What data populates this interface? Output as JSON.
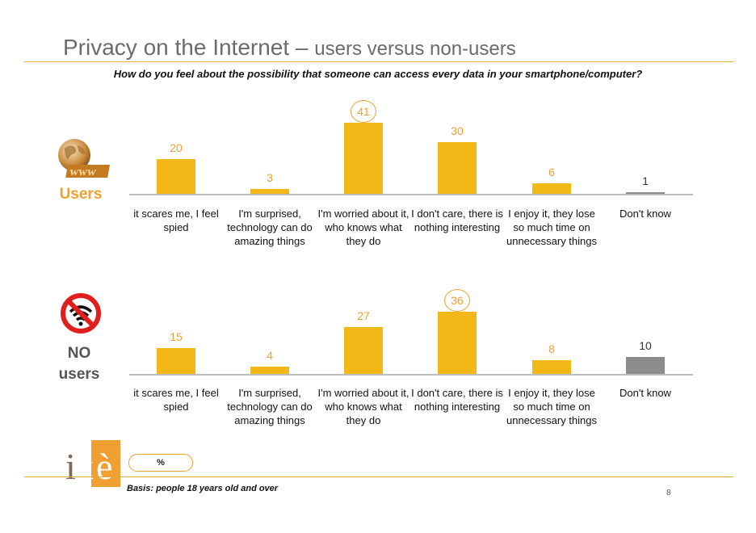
{
  "header": {
    "title_main": "Privacy on the Internet",
    "title_dash": " – ",
    "title_sub": "users versus non-users",
    "question": "How do you feel about the possibility that someone can access every data in your smartphone/computer?"
  },
  "panels": {
    "users_label": "Users",
    "nousers_label_line1": "NO",
    "nousers_label_line2": "users"
  },
  "chart_data": [
    {
      "type": "bar",
      "panel": "Users",
      "categories": [
        "it scares me, I feel spied",
        "I'm surprised, technology can do amazing things",
        "I'm worried about it, who knows what they do",
        "I don't care, there is nothing interesting",
        "I enjoy it, they lose so much time on unnecessary things",
        "Don't know"
      ],
      "values": [
        20,
        3,
        41,
        30,
        6,
        1
      ],
      "highlight_index": 2,
      "bar_colors": [
        "#f2b817",
        "#f2b817",
        "#f2b817",
        "#f2b817",
        "#f2b817",
        "#8c8c8c"
      ],
      "ylim": [
        0,
        45
      ]
    },
    {
      "type": "bar",
      "panel": "NO users",
      "categories": [
        "it scares me, I feel spied",
        "I'm surprised, technology can do amazing things",
        "I'm worried about it, who knows what they do",
        "I don't care, there is nothing interesting",
        "I enjoy it, they lose so much time on unnecessary things",
        "Don't know"
      ],
      "values": [
        15,
        4,
        27,
        36,
        8,
        10
      ],
      "highlight_index": 3,
      "bar_colors": [
        "#f2b817",
        "#f2b817",
        "#f2b817",
        "#f2b817",
        "#f2b817",
        "#8c8c8c"
      ],
      "ylim": [
        0,
        45
      ]
    }
  ],
  "footer": {
    "unit_badge": "%",
    "basis": "Basis: people 18 years old and over",
    "page_number": "8",
    "logo_text": "ixè"
  },
  "colors": {
    "accent": "#f0a030",
    "bar": "#f2b817",
    "dontknow_bar": "#8c8c8c"
  }
}
